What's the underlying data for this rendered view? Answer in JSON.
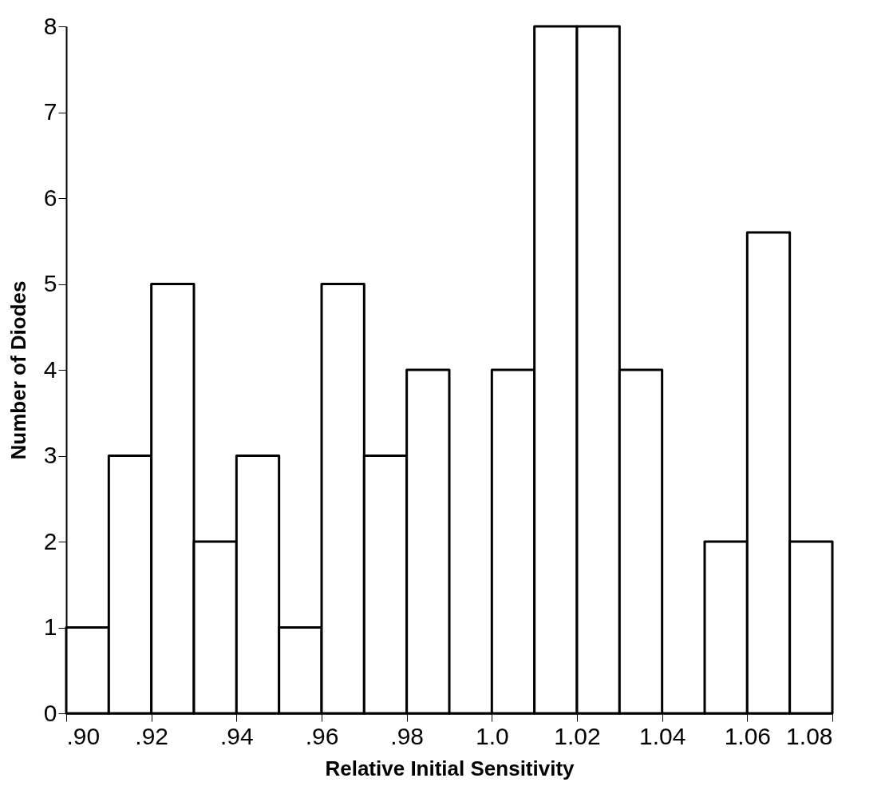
{
  "chart_data": {
    "type": "histogram",
    "xlabel": "Relative Initial Sensitivity",
    "ylabel": "Number of Diodes",
    "bins": [
      0.9,
      0.91,
      0.92,
      0.93,
      0.94,
      0.95,
      0.96,
      0.97,
      0.98,
      0.99,
      1.0,
      1.01,
      1.02,
      1.03,
      1.04,
      1.05,
      1.06,
      1.07,
      1.08
    ],
    "values": [
      1,
      3,
      5,
      2,
      3,
      1,
      5,
      3,
      4,
      0,
      4,
      8,
      8,
      4,
      0,
      2,
      5.6,
      2
    ],
    "color": "#000000",
    "xlim": [
      0.9,
      1.08
    ],
    "xticks": [
      {
        "value": 0.9,
        "label": ".90"
      },
      {
        "value": 0.92,
        "label": ".92"
      },
      {
        "value": 0.94,
        "label": ".94"
      },
      {
        "value": 0.96,
        "label": ".96"
      },
      {
        "value": 0.98,
        "label": ".98"
      },
      {
        "value": 1.0,
        "label": "1.0"
      },
      {
        "value": 1.02,
        "label": "1.02"
      },
      {
        "value": 1.04,
        "label": "1.04"
      },
      {
        "value": 1.06,
        "label": "1.06"
      },
      {
        "value": 1.08,
        "label": "1.08"
      }
    ],
    "ylim": [
      0,
      8
    ],
    "yticks": [
      0,
      1,
      2,
      3,
      4,
      5,
      6,
      7,
      8
    ],
    "grid": false
  }
}
